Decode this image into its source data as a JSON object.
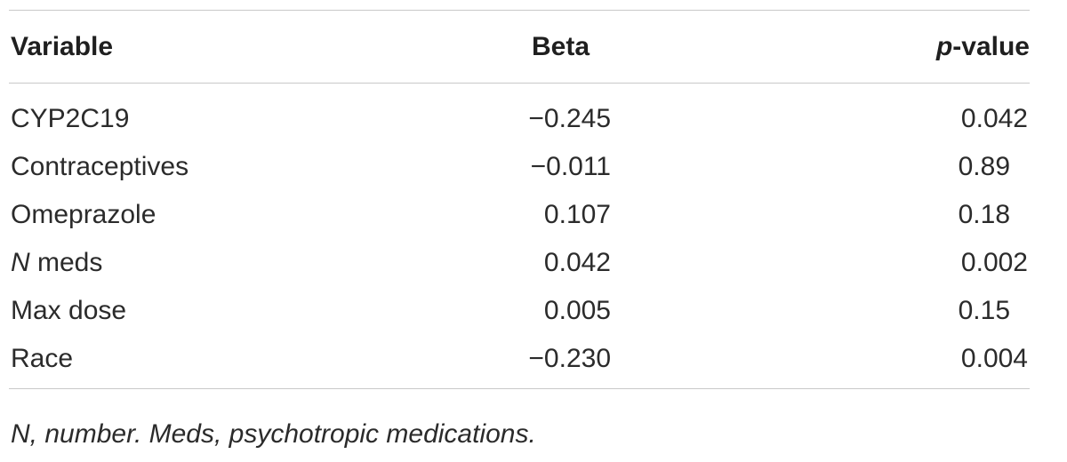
{
  "table": {
    "headers": {
      "variable": "Variable",
      "beta": "Beta",
      "pvalue_italic": "p",
      "pvalue_rest": "-value"
    },
    "rows": [
      {
        "variable_italic": "",
        "variable": "CYP2C19",
        "beta": "−0.245",
        "p": "0.042"
      },
      {
        "variable_italic": "",
        "variable": "Contraceptives",
        "beta": "−0.011",
        "p": "0.89"
      },
      {
        "variable_italic": "",
        "variable": "Omeprazole",
        "beta": "0.107",
        "p": "0.18"
      },
      {
        "variable_italic": "N",
        "variable": " meds",
        "beta": "0.042",
        "p": "0.002"
      },
      {
        "variable_italic": "",
        "variable": "Max dose",
        "beta": "0.005",
        "p": "0.15"
      },
      {
        "variable_italic": "",
        "variable": "Race",
        "beta": "−0.230",
        "p": "0.004"
      }
    ]
  },
  "footnote": "N, number. Meds, psychotropic medications."
}
